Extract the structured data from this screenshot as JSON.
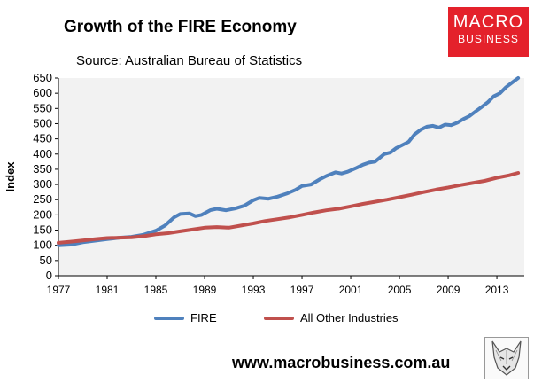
{
  "title": "Growth of the FIRE Economy",
  "subtitle": "Source: Australian Bureau of Statistics",
  "brand": {
    "line1": "MACRO",
    "line2": "BUSINESS",
    "color": "#e4212b"
  },
  "website": "www.macrobusiness.com.au",
  "logo_icon": "wolf-head-icon",
  "chart_data": {
    "type": "line",
    "ylabel": "Index",
    "xlabel": "",
    "ylim": [
      0,
      650
    ],
    "yticks": [
      "0",
      "50",
      "100",
      "150",
      "200",
      "250",
      "300",
      "350",
      "400",
      "450",
      "500",
      "550",
      "600",
      "650"
    ],
    "xticks": [
      "1977",
      "1981",
      "1985",
      "1989",
      "1993",
      "1997",
      "2001",
      "2005",
      "2009",
      "2013"
    ],
    "xlim": [
      1977,
      2015.25
    ],
    "grid": false,
    "legend_position": "bottom",
    "background": "#f2f2f2",
    "series": [
      {
        "name": "FIRE",
        "color": "#4f81bd",
        "points": [
          [
            1977,
            100
          ],
          [
            1978,
            102
          ],
          [
            1979,
            110
          ],
          [
            1980,
            115
          ],
          [
            1981,
            120
          ],
          [
            1982,
            125
          ],
          [
            1983,
            128
          ],
          [
            1984,
            135
          ],
          [
            1985,
            148
          ],
          [
            1985.75,
            165
          ],
          [
            1986.5,
            192
          ],
          [
            1987,
            203
          ],
          [
            1987.75,
            205
          ],
          [
            1988.25,
            196
          ],
          [
            1988.75,
            200
          ],
          [
            1989.5,
            216
          ],
          [
            1990,
            220
          ],
          [
            1990.75,
            215
          ],
          [
            1991.5,
            221
          ],
          [
            1992.25,
            230
          ],
          [
            1993,
            248
          ],
          [
            1993.5,
            256
          ],
          [
            1994.25,
            253
          ],
          [
            1995,
            260
          ],
          [
            1995.75,
            270
          ],
          [
            1996.5,
            283
          ],
          [
            1997,
            295
          ],
          [
            1997.75,
            300
          ],
          [
            1998.5,
            318
          ],
          [
            1999,
            328
          ],
          [
            1999.75,
            340
          ],
          [
            2000.25,
            336
          ],
          [
            2000.75,
            342
          ],
          [
            2001.5,
            355
          ],
          [
            2002,
            365
          ],
          [
            2002.5,
            372
          ],
          [
            2003,
            375
          ],
          [
            2003.75,
            400
          ],
          [
            2004.25,
            405
          ],
          [
            2004.75,
            420
          ],
          [
            2005.25,
            430
          ],
          [
            2005.75,
            440
          ],
          [
            2006.25,
            465
          ],
          [
            2006.75,
            480
          ],
          [
            2007.25,
            490
          ],
          [
            2007.75,
            493
          ],
          [
            2008.25,
            487
          ],
          [
            2008.75,
            497
          ],
          [
            2009.25,
            495
          ],
          [
            2009.75,
            503
          ],
          [
            2010.25,
            515
          ],
          [
            2010.75,
            525
          ],
          [
            2011.25,
            540
          ],
          [
            2011.75,
            555
          ],
          [
            2012.25,
            570
          ],
          [
            2012.75,
            590
          ],
          [
            2013.25,
            600
          ],
          [
            2013.75,
            620
          ],
          [
            2014.25,
            635
          ],
          [
            2014.75,
            650
          ]
        ]
      },
      {
        "name": "All Other Industries",
        "color": "#c0504d",
        "points": [
          [
            1977,
            108
          ],
          [
            1978,
            112
          ],
          [
            1979,
            116
          ],
          [
            1980,
            120
          ],
          [
            1981,
            124
          ],
          [
            1982,
            125
          ],
          [
            1983,
            126
          ],
          [
            1984,
            130
          ],
          [
            1985,
            136
          ],
          [
            1986,
            140
          ],
          [
            1987,
            146
          ],
          [
            1988,
            152
          ],
          [
            1989,
            158
          ],
          [
            1990,
            160
          ],
          [
            1991,
            158
          ],
          [
            1992,
            165
          ],
          [
            1993,
            172
          ],
          [
            1994,
            180
          ],
          [
            1995,
            186
          ],
          [
            1996,
            192
          ],
          [
            1997,
            200
          ],
          [
            1998,
            208
          ],
          [
            1999,
            215
          ],
          [
            2000,
            220
          ],
          [
            2001,
            228
          ],
          [
            2002,
            236
          ],
          [
            2003,
            243
          ],
          [
            2004,
            250
          ],
          [
            2005,
            258
          ],
          [
            2006,
            266
          ],
          [
            2007,
            275
          ],
          [
            2008,
            283
          ],
          [
            2009,
            290
          ],
          [
            2010,
            298
          ],
          [
            2011,
            305
          ],
          [
            2012,
            312
          ],
          [
            2013,
            322
          ],
          [
            2014,
            330
          ],
          [
            2014.75,
            338
          ]
        ]
      }
    ]
  }
}
